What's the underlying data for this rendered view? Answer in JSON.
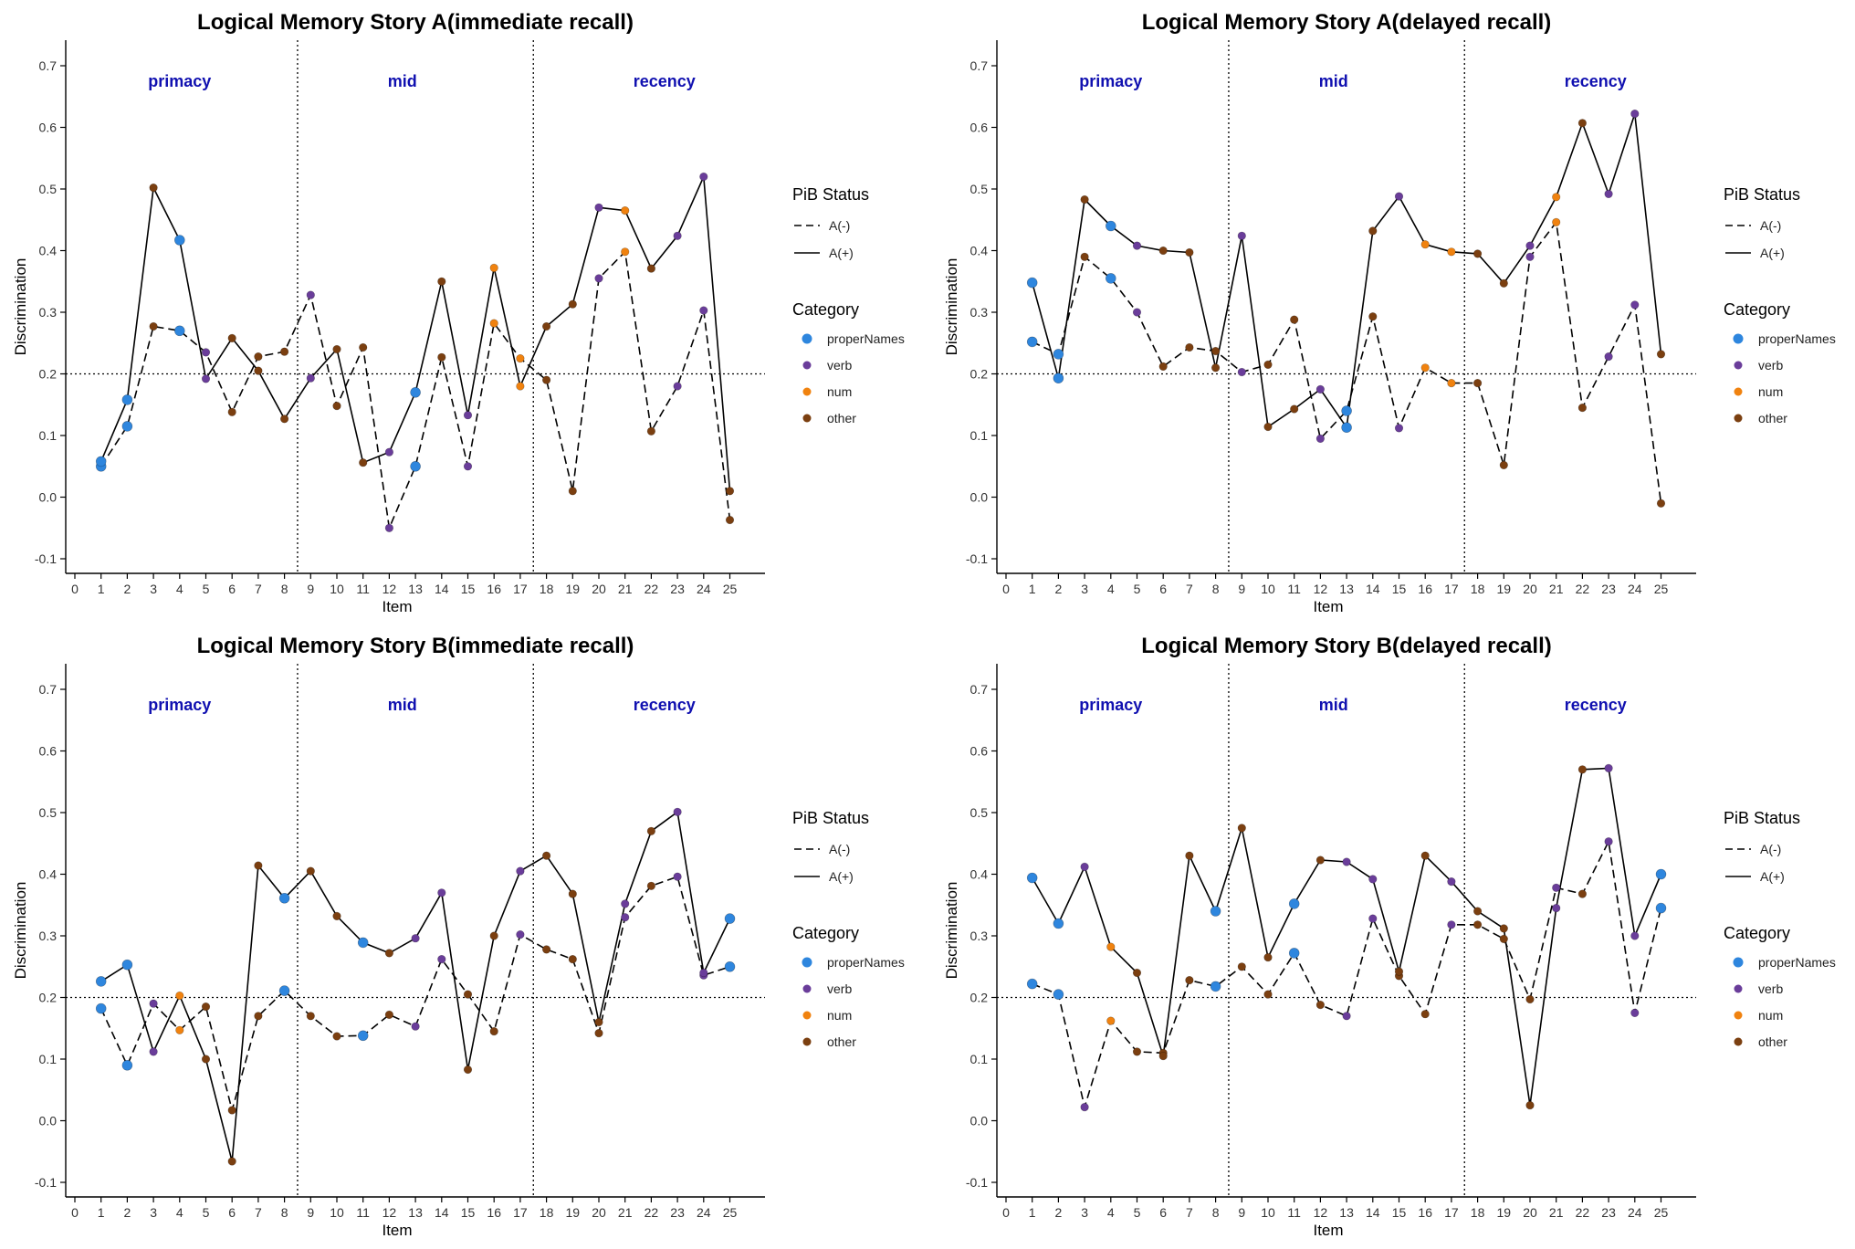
{
  "colors": {
    "properNames": "#2E86DE",
    "verb": "#6A3D9A",
    "num": "#F0820F",
    "other": "#7B3F10",
    "region": "#1010B0",
    "line": "#000000"
  },
  "chart_data": [
    {
      "type": "line",
      "title": "Logical Memory Story A(immediate recall)",
      "xlabel": "Item",
      "ylabel": "Discrimination",
      "xlim": [
        0,
        25
      ],
      "ylim": [
        -0.1,
        0.7
      ],
      "xticks": [
        "0",
        "1",
        "2",
        "3",
        "4",
        "5",
        "6",
        "7",
        "8",
        "9",
        "10",
        "11",
        "12",
        "13",
        "14",
        "15",
        "16",
        "17",
        "18",
        "19",
        "20",
        "21",
        "22",
        "23",
        "24",
        "25"
      ],
      "yticks": [
        "-0.1",
        "0.0",
        "0.1",
        "0.2",
        "0.3",
        "0.4",
        "0.5",
        "0.6",
        "0.7"
      ],
      "regions": [
        "primacy",
        "mid",
        "recency"
      ],
      "hline": 0.2,
      "x": [
        1,
        2,
        3,
        4,
        5,
        6,
        7,
        8,
        9,
        10,
        11,
        12,
        13,
        14,
        15,
        16,
        17,
        18,
        19,
        20,
        21,
        22,
        23,
        24,
        25
      ],
      "categories": [
        "properNames",
        "properNames",
        "other",
        "properNames",
        "verb",
        "other",
        "other",
        "other",
        "verb",
        "other",
        "other",
        "verb",
        "properNames",
        "other",
        "verb",
        "num",
        "num",
        "other",
        "other",
        "verb",
        "num",
        "other",
        "verb",
        "verb",
        "other"
      ],
      "series": [
        {
          "name": "A(-)",
          "style": "dashed",
          "values": [
            0.05,
            0.115,
            0.277,
            0.27,
            0.235,
            0.138,
            0.228,
            0.236,
            0.328,
            0.148,
            0.243,
            -0.05,
            0.05,
            0.227,
            0.05,
            0.282,
            0.225,
            0.19,
            0.01,
            0.355,
            0.398,
            0.107,
            0.18,
            0.303,
            -0.037
          ]
        },
        {
          "name": "A(+)",
          "style": "solid",
          "values": [
            0.058,
            0.158,
            0.502,
            0.417,
            0.192,
            0.258,
            0.205,
            0.127,
            0.193,
            0.24,
            0.056,
            0.073,
            0.17,
            0.35,
            0.133,
            0.372,
            0.18,
            0.277,
            0.313,
            0.47,
            0.465,
            0.371,
            0.424,
            0.52,
            0.01
          ]
        }
      ]
    },
    {
      "type": "line",
      "title": "Logical Memory Story A(delayed recall)",
      "xlabel": "Item",
      "ylabel": "Discrimination",
      "xlim": [
        0,
        25
      ],
      "ylim": [
        -0.1,
        0.7
      ],
      "xticks": [
        "0",
        "1",
        "2",
        "3",
        "4",
        "5",
        "6",
        "7",
        "8",
        "9",
        "10",
        "11",
        "12",
        "13",
        "14",
        "15",
        "16",
        "17",
        "18",
        "19",
        "20",
        "21",
        "22",
        "23",
        "24",
        "25"
      ],
      "yticks": [
        "-0.1",
        "0.0",
        "0.1",
        "0.2",
        "0.3",
        "0.4",
        "0.5",
        "0.6",
        "0.7"
      ],
      "regions": [
        "primacy",
        "mid",
        "recency"
      ],
      "hline": 0.2,
      "x": [
        1,
        2,
        3,
        4,
        5,
        6,
        7,
        8,
        9,
        10,
        11,
        12,
        13,
        14,
        15,
        16,
        17,
        18,
        19,
        20,
        21,
        22,
        23,
        24,
        25
      ],
      "categories": [
        "properNames",
        "properNames",
        "other",
        "properNames",
        "verb",
        "other",
        "other",
        "other",
        "verb",
        "other",
        "other",
        "verb",
        "properNames",
        "other",
        "verb",
        "num",
        "num",
        "other",
        "other",
        "verb",
        "num",
        "other",
        "verb",
        "verb",
        "other"
      ],
      "series": [
        {
          "name": "A(-)",
          "style": "dashed",
          "values": [
            0.252,
            0.232,
            0.39,
            0.355,
            0.3,
            0.212,
            0.243,
            0.237,
            0.203,
            0.215,
            0.288,
            0.095,
            0.14,
            0.293,
            0.112,
            0.21,
            0.185,
            0.185,
            0.052,
            0.39,
            0.446,
            0.145,
            0.228,
            0.312,
            -0.01
          ]
        },
        {
          "name": "A(+)",
          "style": "solid",
          "values": [
            0.348,
            0.193,
            0.483,
            0.44,
            0.408,
            0.4,
            0.397,
            0.21,
            0.424,
            0.114,
            0.143,
            0.175,
            0.113,
            0.432,
            0.488,
            0.41,
            0.398,
            0.395,
            0.347,
            0.408,
            0.487,
            0.607,
            0.492,
            0.622,
            0.232
          ]
        }
      ]
    },
    {
      "type": "line",
      "title": "Logical Memory Story B(immediate recall)",
      "xlabel": "Item",
      "ylabel": "Discrimination",
      "xlim": [
        0,
        25
      ],
      "ylim": [
        -0.1,
        0.7
      ],
      "xticks": [
        "0",
        "1",
        "2",
        "3",
        "4",
        "5",
        "6",
        "7",
        "8",
        "9",
        "10",
        "11",
        "12",
        "13",
        "14",
        "15",
        "16",
        "17",
        "18",
        "19",
        "20",
        "21",
        "22",
        "23",
        "24",
        "25"
      ],
      "yticks": [
        "-0.1",
        "0.0",
        "0.1",
        "0.2",
        "0.3",
        "0.4",
        "0.5",
        "0.6",
        "0.7"
      ],
      "regions": [
        "primacy",
        "mid",
        "recency"
      ],
      "hline": 0.2,
      "x": [
        1,
        2,
        3,
        4,
        5,
        6,
        7,
        8,
        9,
        10,
        11,
        12,
        13,
        14,
        15,
        16,
        17,
        18,
        19,
        20,
        21,
        22,
        23,
        24,
        25
      ],
      "categories": [
        "properNames",
        "properNames",
        "verb",
        "num",
        "other",
        "other",
        "other",
        "properNames",
        "other",
        "other",
        "properNames",
        "other",
        "verb",
        "verb",
        "other",
        "other",
        "verb",
        "other",
        "other",
        "other",
        "verb",
        "other",
        "verb",
        "verb",
        "properNames"
      ],
      "series": [
        {
          "name": "A(-)",
          "style": "dashed",
          "values": [
            0.182,
            0.09,
            0.19,
            0.147,
            0.185,
            0.017,
            0.17,
            0.211,
            0.17,
            0.137,
            0.138,
            0.172,
            0.153,
            0.262,
            0.205,
            0.145,
            0.302,
            0.278,
            0.262,
            0.142,
            0.33,
            0.381,
            0.396,
            0.236,
            0.25
          ]
        },
        {
          "name": "A(+)",
          "style": "solid",
          "values": [
            0.226,
            0.253,
            0.112,
            0.203,
            0.1,
            -0.066,
            0.414,
            0.361,
            0.405,
            0.332,
            0.289,
            0.272,
            0.296,
            0.37,
            0.083,
            0.3,
            0.405,
            0.43,
            0.368,
            0.16,
            0.352,
            0.47,
            0.501,
            0.24,
            0.328
          ]
        }
      ]
    },
    {
      "type": "line",
      "title": "Logical Memory Story B(delayed recall)",
      "xlabel": "Item",
      "ylabel": "Discrimination",
      "xlim": [
        0,
        25
      ],
      "ylim": [
        -0.1,
        0.7
      ],
      "xticks": [
        "0",
        "1",
        "2",
        "3",
        "4",
        "5",
        "6",
        "7",
        "8",
        "9",
        "10",
        "11",
        "12",
        "13",
        "14",
        "15",
        "16",
        "17",
        "18",
        "19",
        "20",
        "21",
        "22",
        "23",
        "24",
        "25"
      ],
      "yticks": [
        "-0.1",
        "0.0",
        "0.1",
        "0.2",
        "0.3",
        "0.4",
        "0.5",
        "0.6",
        "0.7"
      ],
      "regions": [
        "primacy",
        "mid",
        "recency"
      ],
      "hline": 0.2,
      "x": [
        1,
        2,
        3,
        4,
        5,
        6,
        7,
        8,
        9,
        10,
        11,
        12,
        13,
        14,
        15,
        16,
        17,
        18,
        19,
        20,
        21,
        22,
        23,
        24,
        25
      ],
      "categories": [
        "properNames",
        "properNames",
        "verb",
        "num",
        "other",
        "other",
        "other",
        "properNames",
        "other",
        "other",
        "properNames",
        "other",
        "verb",
        "verb",
        "other",
        "other",
        "verb",
        "other",
        "other",
        "other",
        "verb",
        "other",
        "verb",
        "verb",
        "properNames"
      ],
      "series": [
        {
          "name": "A(-)",
          "style": "dashed",
          "values": [
            0.222,
            0.205,
            0.022,
            0.162,
            0.112,
            0.11,
            0.228,
            0.218,
            0.25,
            0.205,
            0.272,
            0.188,
            0.17,
            0.328,
            0.235,
            0.173,
            0.318,
            0.318,
            0.295,
            0.197,
            0.378,
            0.368,
            0.453,
            0.175,
            0.345
          ]
        },
        {
          "name": "A(+)",
          "style": "solid",
          "values": [
            0.394,
            0.32,
            0.412,
            0.282,
            0.24,
            0.105,
            0.43,
            0.34,
            0.475,
            0.265,
            0.352,
            0.423,
            0.42,
            0.392,
            0.242,
            0.43,
            0.388,
            0.34,
            0.312,
            0.025,
            0.345,
            0.57,
            0.572,
            0.3,
            0.4
          ]
        }
      ]
    }
  ],
  "legend": {
    "status_title": "PiB Status",
    "status_items": [
      "A(-)",
      "A(+)"
    ],
    "category_title": "Category",
    "category_items": [
      "properNames",
      "verb",
      "num",
      "other"
    ]
  }
}
